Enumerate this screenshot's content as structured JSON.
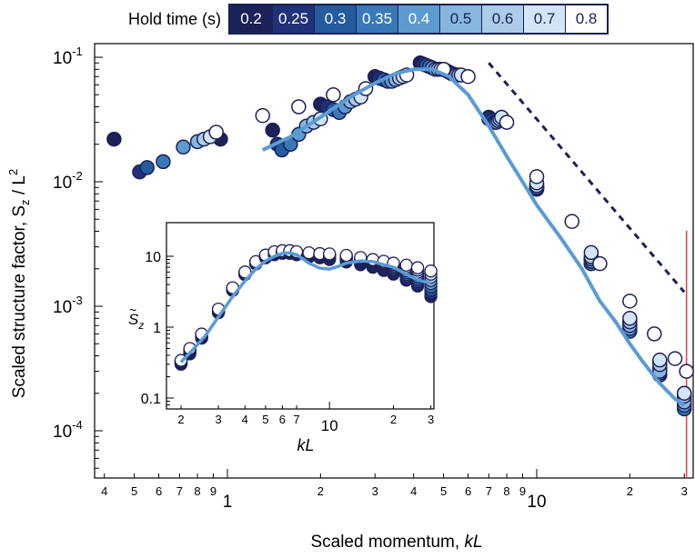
{
  "legend": {
    "title": "Hold time (s)",
    "entries": [
      {
        "label": "0.2",
        "color": "#1c2157",
        "text_color": "#ffffff"
      },
      {
        "label": "0.25",
        "color": "#20317a",
        "text_color": "#ffffff"
      },
      {
        "label": "0.3",
        "color": "#245a9e",
        "text_color": "#ffffff"
      },
      {
        "label": "0.35",
        "color": "#3979b8",
        "text_color": "#ffffff"
      },
      {
        "label": "0.4",
        "color": "#5c9acf",
        "text_color": "#ffffff"
      },
      {
        "label": "0.5",
        "color": "#87b6de",
        "text_color": "#1c2157"
      },
      {
        "label": "0.6",
        "color": "#acccea",
        "text_color": "#1c2157"
      },
      {
        "label": "0.7",
        "color": "#d3e5f4",
        "text_color": "#1c2157"
      },
      {
        "label": "0.8",
        "color": "#ffffff",
        "text_color": "#1c2157"
      }
    ]
  },
  "main": {
    "ylabel": "Scaled structure factor, S",
    "ylabel_sub": "z",
    "ylabel_tail": " / L",
    "ylabel_sup": "2",
    "xlabel": "Scaled momentum, ",
    "xlabel_italic": "kL",
    "y_ticks": [
      {
        "base": "10",
        "exp": "-1",
        "value": 0.1
      },
      {
        "base": "10",
        "exp": "-2",
        "value": 0.01
      },
      {
        "base": "10",
        "exp": "-3",
        "value": 0.001
      },
      {
        "base": "10",
        "exp": "-4",
        "value": 0.0001
      }
    ],
    "x_major_labels": [
      {
        "label": "1",
        "value": 1
      },
      {
        "label": "10",
        "value": 10
      }
    ],
    "x_minor_labels": [
      {
        "label": "4",
        "value": 0.4
      },
      {
        "label": "5",
        "value": 0.5
      },
      {
        "label": "6",
        "value": 0.6
      },
      {
        "label": "7",
        "value": 0.7
      },
      {
        "label": "8",
        "value": 0.8
      },
      {
        "label": "9",
        "value": 0.9
      },
      {
        "label": "2",
        "value": 2
      },
      {
        "label": "3",
        "value": 3
      },
      {
        "label": "4",
        "value": 4
      },
      {
        "label": "5",
        "value": 5
      },
      {
        "label": "6",
        "value": 6
      },
      {
        "label": "7",
        "value": 7
      },
      {
        "label": "8",
        "value": 8
      },
      {
        "label": "9",
        "value": 9
      },
      {
        "label": "2",
        "value": 20
      },
      {
        "label": "3",
        "value": 30
      }
    ]
  },
  "inset": {
    "ylabel": "S",
    "ylabel_sub": "z",
    "xlabel": "kL",
    "y_ticks": [
      {
        "label": "10",
        "value": 10
      },
      {
        "label": "1",
        "value": 1
      },
      {
        "label": "0.1",
        "value": 0.1
      }
    ],
    "x_labels": [
      {
        "label": "2",
        "value": 2
      },
      {
        "label": "3",
        "value": 3
      },
      {
        "label": "4",
        "value": 4
      },
      {
        "label": "5",
        "value": 5
      },
      {
        "label": "6",
        "value": 6
      },
      {
        "label": "7",
        "value": 7
      },
      {
        "label": "10",
        "value": 10
      },
      {
        "label": "2",
        "value": 20
      },
      {
        "label": "3",
        "value": 30
      }
    ]
  },
  "chart_data": [
    {
      "type": "scatter",
      "x_scale": "log",
      "y_scale": "log",
      "xlim": [
        0.35,
        32
      ],
      "ylim": [
        6e-05,
        0.13
      ],
      "xlabel": "Scaled momentum, kL",
      "ylabel": "Scaled structure factor, Sz / L2",
      "legend_title": "Hold time (s)",
      "grid": false,
      "series": [
        {
          "name": "0.2",
          "color": "#1c2157",
          "x": [
            0.43,
            0.95,
            1.4,
            2.0,
            3.0,
            4.2,
            5.0,
            7.0,
            10,
            15,
            20,
            25,
            30
          ],
          "y": [
            0.022,
            0.022,
            0.026,
            0.042,
            0.07,
            0.09,
            0.08,
            0.033,
            0.0095,
            0.0024,
            0.00075,
            0.00036,
            0.0002
          ]
        },
        {
          "name": "0.25",
          "color": "#20317a",
          "x": [
            0.52,
            1.45,
            2.1,
            3.1,
            4.3,
            5.1,
            7.0,
            10,
            15,
            20,
            25,
            30
          ],
          "y": [
            0.012,
            0.02,
            0.04,
            0.068,
            0.088,
            0.078,
            0.032,
            0.009,
            0.0023,
            0.0007,
            0.00032,
            0.00018
          ]
        },
        {
          "name": "0.3",
          "color": "#245a9e",
          "x": [
            0.55,
            1.5,
            2.2,
            3.2,
            4.4,
            5.2,
            7.2,
            10,
            15,
            20,
            25,
            30
          ],
          "y": [
            0.013,
            0.018,
            0.038,
            0.066,
            0.086,
            0.076,
            0.031,
            0.0088,
            0.0022,
            0.00065,
            0.0003,
            0.00016
          ]
        },
        {
          "name": "0.35",
          "color": "#3979b8",
          "x": [
            0.62,
            1.6,
            2.3,
            3.3,
            4.5,
            5.3,
            7.3,
            10,
            15,
            20,
            25,
            30
          ],
          "y": [
            0.0145,
            0.02,
            0.036,
            0.064,
            0.084,
            0.074,
            0.03,
            0.0087,
            0.0022,
            0.00063,
            0.00028,
            0.00015
          ]
        },
        {
          "name": "0.4",
          "color": "#5c9acf",
          "x": [
            0.72,
            1.7,
            2.4,
            3.4,
            4.6,
            5.4,
            7.4,
            10,
            15,
            20,
            25,
            30
          ],
          "y": [
            0.019,
            0.024,
            0.04,
            0.064,
            0.082,
            0.073,
            0.03,
            0.0088,
            0.0023,
            0.00066,
            0.00029,
            0.00016
          ]
        },
        {
          "name": "0.5",
          "color": "#87b6de",
          "x": [
            0.8,
            1.8,
            2.5,
            3.5,
            4.7,
            5.5,
            7.5,
            10,
            15,
            20,
            25,
            30
          ],
          "y": [
            0.021,
            0.028,
            0.044,
            0.066,
            0.08,
            0.072,
            0.031,
            0.009,
            0.0024,
            0.0007,
            0.0003,
            0.00017
          ]
        },
        {
          "name": "0.6",
          "color": "#acccea",
          "x": [
            0.84,
            1.9,
            2.6,
            3.6,
            4.8,
            5.6,
            7.6,
            10,
            15,
            20,
            25,
            30
          ],
          "y": [
            0.022,
            0.03,
            0.046,
            0.068,
            0.08,
            0.072,
            0.032,
            0.0093,
            0.0025,
            0.00075,
            0.00034,
            0.00019
          ]
        },
        {
          "name": "0.7",
          "color": "#d3e5f4",
          "x": [
            0.88,
            2.0,
            2.7,
            3.7,
            4.9,
            5.7,
            7.7,
            10,
            15,
            20,
            25,
            30
          ],
          "y": [
            0.023,
            0.032,
            0.048,
            0.07,
            0.08,
            0.072,
            0.033,
            0.0098,
            0.0027,
            0.0008,
            0.00037,
            0.0002
          ]
        },
        {
          "name": "0.8",
          "color": "#ffffff",
          "x": [
            0.92,
            1.3,
            1.7,
            2.2,
            2.8,
            3.8,
            5.0,
            6.0,
            8.0,
            10,
            13,
            16,
            20,
            24,
            28,
            30.5
          ],
          "y": [
            0.025,
            0.034,
            0.04,
            0.05,
            0.056,
            0.072,
            0.08,
            0.07,
            0.03,
            0.011,
            0.0048,
            0.0022,
            0.0011,
            0.0006,
            0.00038,
            0.0003
          ]
        }
      ],
      "theory_curve": {
        "color": "#5b9bd5",
        "x": [
          1.3,
          1.6,
          2,
          2.5,
          3,
          3.5,
          4,
          4.6,
          5.2,
          6,
          7,
          8,
          9,
          10,
          12,
          14,
          16,
          18,
          20,
          22,
          25,
          28,
          30
        ],
        "y": [
          0.018,
          0.023,
          0.033,
          0.048,
          0.062,
          0.074,
          0.08,
          0.08,
          0.07,
          0.05,
          0.028,
          0.016,
          0.01,
          0.0065,
          0.0035,
          0.002,
          0.0011,
          0.00075,
          0.0005,
          0.00036,
          0.00024,
          0.00018,
          0.00016
        ]
      },
      "power_law_line": {
        "color": "#1c2157",
        "style": "dashed",
        "x": [
          7,
          30
        ],
        "y": [
          0.09,
          0.0013
        ]
      },
      "vertical_line": {
        "color": "#e8424a",
        "x": 30.5
      }
    },
    {
      "type": "scatter",
      "x_scale": "log",
      "y_scale": "log",
      "xlim": [
        1.8,
        32
      ],
      "ylim": [
        0.07,
        25
      ],
      "xlabel": "kL",
      "ylabel": "Sz",
      "series_x": [
        2.0,
        2.2,
        2.5,
        3.0,
        3.5,
        4.0,
        4.5,
        5.0,
        5.5,
        6.0,
        6.5,
        7.0,
        8.0,
        9.0,
        10,
        12,
        14,
        16,
        18,
        20,
        23,
        26,
        30
      ],
      "envelope_low": [
        0.3,
        0.42,
        0.7,
        1.6,
        3.3,
        5.5,
        7.8,
        9.5,
        10.5,
        11,
        11,
        10.5,
        9.8,
        9.5,
        9,
        8.3,
        7.6,
        7,
        6.3,
        5.6,
        4.6,
        3.8,
        2.7
      ],
      "envelope_high": [
        0.34,
        0.5,
        0.8,
        1.8,
        3.6,
        6.0,
        8.4,
        10.4,
        11.6,
        12,
        12,
        11.6,
        11.2,
        10.9,
        10.8,
        10.3,
        9.6,
        9.0,
        8.5,
        8.0,
        7.5,
        6.9,
        6.2
      ],
      "theory_curve": {
        "color": "#5b9bd5",
        "x": [
          2,
          2.3,
          2.6,
          3,
          3.5,
          4,
          4.5,
          5,
          5.5,
          6,
          6.5,
          7,
          7.5,
          8,
          9,
          10,
          11,
          12,
          14,
          16,
          18,
          20,
          22,
          24,
          27,
          30
        ],
        "y": [
          0.32,
          0.5,
          0.75,
          1.4,
          2.7,
          4.5,
          6.6,
          8.6,
          10,
          11,
          11.2,
          10.5,
          9.2,
          8.0,
          6.8,
          6.6,
          7.2,
          8.0,
          8.6,
          8.4,
          7.6,
          7.0,
          6.0,
          5.2,
          4.5,
          4.2
        ]
      }
    }
  ]
}
